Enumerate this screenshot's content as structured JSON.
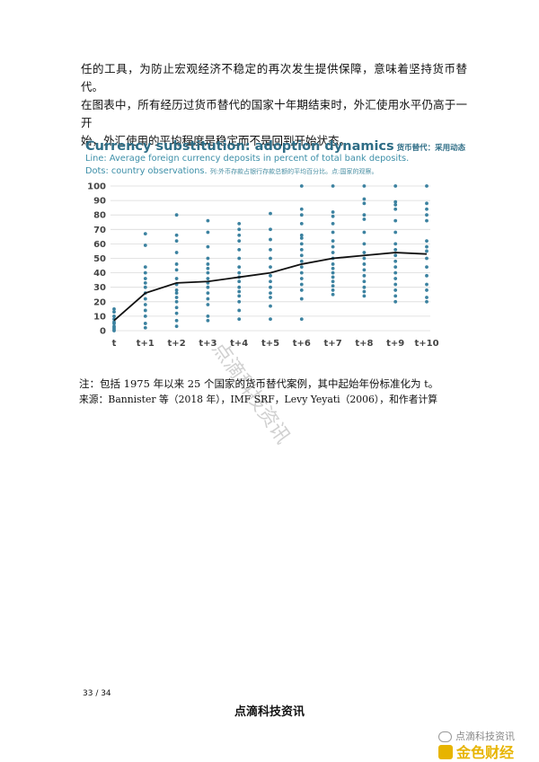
{
  "paragraph": {
    "line1": "任的工具，为防止宏观经济不稳定的再次发生提供保障，意味着坚持货币替代。",
    "line2": "在图表中，所有经历过货币替代的国家十年期结束时，外汇使用水平仍高于一开",
    "line3": "始，外汇使用的平均程度是稳定而不是回到开始状态。"
  },
  "chart": {
    "title_en": "Currency substitution: adoption dynamics",
    "title_zh": "货币替代：采用动态",
    "sub1_en": "Line: Average foreign currency deposits in percent of total bank deposits.",
    "sub2_en": "Dots: country observations.",
    "sub2_zh": "列:外币存款占银行存款总额的平均百分比。点:国家的观察。"
  },
  "chart_data": {
    "type": "scatter",
    "categories": [
      "t",
      "t+1",
      "t+2",
      "t+3",
      "t+4",
      "t+5",
      "t+6",
      "t+7",
      "t+8",
      "t+9",
      "t+10"
    ],
    "ylim": [
      0,
      100
    ],
    "yticks": [
      0,
      10,
      20,
      30,
      40,
      50,
      60,
      70,
      80,
      90,
      100
    ],
    "line": [
      7,
      26,
      33,
      34,
      37,
      40,
      46,
      50,
      52,
      54,
      53
    ],
    "dots": [
      [
        0,
        1,
        2,
        3,
        5,
        6,
        8,
        10,
        13,
        15
      ],
      [
        2,
        5,
        10,
        14,
        18,
        22,
        26,
        30,
        33,
        36,
        40,
        44,
        59,
        67
      ],
      [
        3,
        7,
        12,
        16,
        20,
        23,
        26,
        28,
        32,
        36,
        42,
        46,
        54,
        62,
        66,
        80
      ],
      [
        7,
        10,
        18,
        22,
        26,
        30,
        33,
        36,
        40,
        43,
        46,
        50,
        58,
        68,
        76
      ],
      [
        8,
        14,
        20,
        24,
        27,
        30,
        34,
        37,
        40,
        44,
        50,
        56,
        62,
        66,
        70,
        74
      ],
      [
        8,
        17,
        23,
        26,
        30,
        34,
        38,
        44,
        50,
        56,
        63,
        70,
        81
      ],
      [
        8,
        22,
        28,
        32,
        36,
        40,
        44,
        48,
        52,
        56,
        60,
        64,
        66,
        74,
        80,
        84,
        100
      ],
      [
        25,
        28,
        31,
        34,
        37,
        40,
        43,
        46,
        50,
        54,
        58,
        62,
        68,
        74,
        79,
        82,
        100
      ],
      [
        24,
        27,
        30,
        34,
        38,
        42,
        46,
        50,
        54,
        60,
        68,
        77,
        80,
        88,
        91,
        100
      ],
      [
        20,
        24,
        28,
        32,
        36,
        40,
        44,
        48,
        52,
        56,
        60,
        68,
        76,
        84,
        87,
        89,
        100
      ],
      [
        20,
        23,
        28,
        32,
        38,
        44,
        50,
        55,
        58,
        62,
        76,
        80,
        84,
        88,
        100
      ]
    ],
    "colors": {
      "dots": "#3c82a0",
      "line": "#111111",
      "grid": "#dadada"
    }
  },
  "note": {
    "line1": "注：包括 1975 年以来 25 个国家的货币替代案例，其中起始年份标准化为 t。",
    "line2": "来源：Bannister 等（2018 年），IMF SRF，Levy Yeyati（2006），和作者计算"
  },
  "page_number": "33 / 34",
  "footer": "点滴科技资讯",
  "watermark": "点滴科技资讯",
  "wechat_label": "点滴科技资讯",
  "brand": "金色财经"
}
